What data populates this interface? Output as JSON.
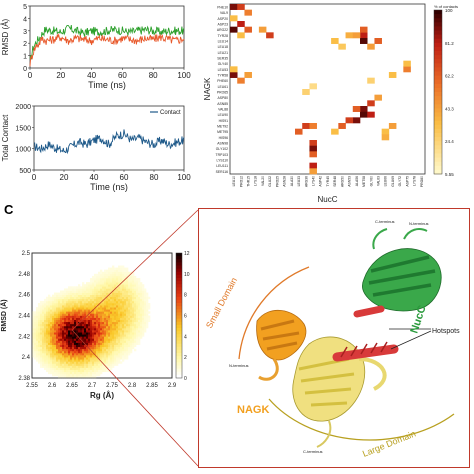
{
  "panel_c_label": "C",
  "chart_data": [
    {
      "type": "line",
      "ylabel": "RMSD (Å)",
      "xlabel": "Time (ns)",
      "xlim": [
        0,
        100
      ],
      "ylim": [
        0,
        5
      ],
      "x_ticks": [
        "0",
        "20",
        "40",
        "60",
        "80",
        "100"
      ],
      "y_ticks": [
        "0",
        "1",
        "2",
        "3",
        "4",
        "5"
      ],
      "series": [
        {
          "color": "#2ca02c",
          "x": [
            0,
            2,
            4,
            6,
            8,
            10,
            15,
            20,
            25,
            30,
            35,
            40,
            45,
            50,
            55,
            60,
            65,
            70,
            75,
            80,
            85,
            90,
            95,
            100
          ],
          "values": [
            0.5,
            1.6,
            2.1,
            2.4,
            2.8,
            3.1,
            3.0,
            2.9,
            3.2,
            3.0,
            2.8,
            3.0,
            2.9,
            3.0,
            3.1,
            3.0,
            2.9,
            3.0,
            3.1,
            3.0,
            2.9,
            3.0,
            3.0,
            3.0
          ]
        },
        {
          "color": "#e8582a",
          "x": [
            0,
            2,
            4,
            6,
            8,
            10,
            15,
            20,
            25,
            30,
            35,
            40,
            45,
            50,
            55,
            60,
            65,
            70,
            75,
            80,
            85,
            90,
            95,
            100
          ],
          "values": [
            0.4,
            1.3,
            1.8,
            2.0,
            2.4,
            2.2,
            2.3,
            2.5,
            2.2,
            2.4,
            2.3,
            2.2,
            2.4,
            2.3,
            2.2,
            2.4,
            2.3,
            2.2,
            2.4,
            2.3,
            2.5,
            2.3,
            2.2,
            2.4
          ]
        }
      ]
    },
    {
      "type": "line",
      "ylabel": "Total Contact",
      "xlabel": "Time (ns)",
      "xlim": [
        0,
        100
      ],
      "ylim": [
        500,
        2000
      ],
      "x_ticks": [
        "0",
        "20",
        "40",
        "60",
        "80",
        "100"
      ],
      "y_ticks": [
        "500",
        "1000",
        "1500",
        "2000"
      ],
      "series": [
        {
          "name": "Contact",
          "color": "#1f5a8a",
          "x": [
            0,
            5,
            10,
            15,
            20,
            25,
            30,
            35,
            40,
            45,
            50,
            55,
            60,
            65,
            70,
            75,
            80,
            85,
            90,
            95,
            100
          ],
          "values": [
            1050,
            1000,
            1100,
            1000,
            950,
            1050,
            1150,
            1100,
            1200,
            1250,
            1100,
            1300,
            1350,
            1200,
            1250,
            1150,
            1100,
            1200,
            1100,
            1150,
            1200
          ]
        }
      ]
    },
    {
      "type": "heatmap",
      "xlabel": "NucC",
      "ylabel": "NAGK",
      "colorbar_title": "% of contacts",
      "colorbar_ticks": [
        "100",
        "81.2",
        "62.2",
        "43.3",
        "24.4",
        "5.55"
      ],
      "rows": [
        "PHE10",
        "VAL9",
        "ASP20",
        "ASP23",
        "ARG22",
        "TYR28",
        "LEU14",
        "LEU18",
        "LEU21",
        "SER35",
        "GLY40",
        "LEU53",
        "TYR58",
        "PHE60",
        "LEU61",
        "PRO65",
        "ASP80",
        "ASN85",
        "VAL88",
        "LEU90",
        "HIS91",
        "MET92",
        "MET95",
        "HIS96",
        "ASN98",
        "GLY102",
        "TRP103",
        "LYS110",
        "LEU111",
        "SER116"
      ],
      "cols": [
        "LEU10",
        "PRO12",
        "THR15",
        "LYS18",
        "VAL20",
        "GLU22",
        "PRO25",
        "ASN28",
        "ALA30",
        "LEU33",
        "ARG36",
        "LYS40",
        "ASP42",
        "TYR45",
        "SER48",
        "ARG50",
        "ASN53",
        "ALA56",
        "MET58",
        "GLY60",
        "VAL63",
        "LEU66",
        "GLU69",
        "GLY72",
        "ASP75",
        "LYS78",
        "PRO80"
      ],
      "cells": [
        [
          0,
          0,
          0.9
        ],
        [
          0,
          1,
          0.7
        ],
        [
          1,
          2,
          0.5
        ],
        [
          2,
          0,
          0.3
        ],
        [
          3,
          1,
          0.8
        ],
        [
          4,
          0,
          0.95
        ],
        [
          4,
          2,
          0.6
        ],
        [
          4,
          4,
          0.4
        ],
        [
          5,
          5,
          0.7
        ],
        [
          5,
          1,
          0.3
        ],
        [
          5,
          16,
          0.35
        ],
        [
          5,
          18,
          0.8
        ],
        [
          6,
          18,
          0.95
        ],
        [
          6,
          20,
          0.6
        ],
        [
          7,
          19,
          0.4
        ],
        [
          6,
          14,
          0.3
        ],
        [
          7,
          15,
          0.25
        ],
        [
          4,
          18,
          0.6
        ],
        [
          5,
          17,
          0.4
        ],
        [
          12,
          0,
          0.9
        ],
        [
          13,
          1,
          0.5
        ],
        [
          12,
          2,
          0.4
        ],
        [
          11,
          0,
          0.3
        ],
        [
          13,
          19,
          0.2
        ],
        [
          12,
          22,
          0.3
        ],
        [
          11,
          24,
          0.5
        ],
        [
          10,
          24,
          0.3
        ],
        [
          18,
          18,
          0.9
        ],
        [
          19,
          18,
          0.95
        ],
        [
          19,
          19,
          0.8
        ],
        [
          20,
          17,
          0.9
        ],
        [
          20,
          16,
          0.7
        ],
        [
          21,
          15,
          0.6
        ],
        [
          17,
          19,
          0.7
        ],
        [
          16,
          20,
          0.4
        ],
        [
          18,
          17,
          0.6
        ],
        [
          21,
          10,
          0.7
        ],
        [
          21,
          11,
          0.5
        ],
        [
          22,
          9,
          0.6
        ],
        [
          22,
          14,
          0.3
        ],
        [
          21,
          22,
          0.4
        ],
        [
          22,
          21,
          0.3
        ],
        [
          24,
          11,
          0.7
        ],
        [
          25,
          11,
          0.9
        ],
        [
          26,
          11,
          0.6
        ],
        [
          28,
          11,
          0.8
        ],
        [
          29,
          11,
          0.4
        ],
        [
          15,
          10,
          0.2
        ],
        [
          14,
          11,
          0.15
        ],
        [
          23,
          21,
          0.35
        ]
      ]
    },
    {
      "type": "heatmap",
      "xlabel": "Rg (Å)",
      "ylabel": "RMSD (Å)",
      "x_ticks": [
        "2.55",
        "2.6",
        "2.65",
        "2.7",
        "2.75",
        "2.8",
        "2.85",
        "2.9"
      ],
      "y_ticks": [
        "2.38",
        "2.4",
        "2.42",
        "2.44",
        "2.46",
        "2.48",
        "2.5"
      ],
      "xlim": [
        2.55,
        2.9
      ],
      "ylim": [
        2.38,
        2.5
      ],
      "colorbar_ticks": [
        "0",
        "2",
        "4",
        "6",
        "8",
        "10",
        "12"
      ],
      "density_center": [
        2.66,
        2.422
      ],
      "density_spread": [
        0.05,
        0.018
      ]
    }
  ],
  "structure": {
    "labels": {
      "small_domain": "Small Domain",
      "large_domain": "Large Domain",
      "nagk": "NAGK",
      "nucc": "NucC",
      "hotspots": "Hotspots",
      "c_terminus_top": "C-terminus",
      "n_terminus_top": "N-terminus",
      "n_terminus_left": "N-terminus",
      "c_terminus_bottom": "C-terminus"
    },
    "colors": {
      "small_domain": "#e07a2a",
      "large_domain": "#b8a020",
      "nagk": "#f2a020",
      "nucc": "#2a9a3c",
      "hotspot": "#d83a3a",
      "frame": "#c0392b"
    }
  }
}
